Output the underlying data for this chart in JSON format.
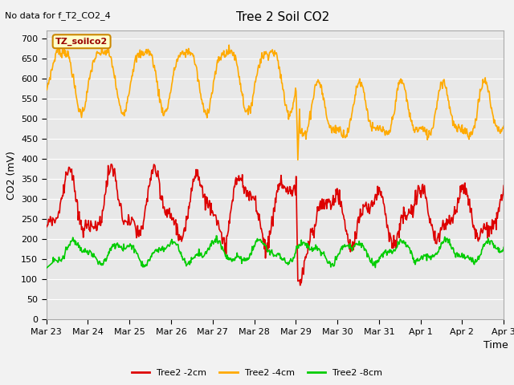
{
  "title": "Tree 2 Soil CO2",
  "subtitle": "No data for f_T2_CO2_4",
  "ylabel": "CO2 (mV)",
  "xlabel": "Time",
  "legend_label": "TZ_soilco2",
  "ylim": [
    0,
    720
  ],
  "yticks": [
    0,
    50,
    100,
    150,
    200,
    250,
    300,
    350,
    400,
    450,
    500,
    550,
    600,
    650,
    700
  ],
  "xtick_labels": [
    "Mar 23",
    "Mar 24",
    "Mar 25",
    "Mar 26",
    "Mar 27",
    "Mar 28",
    "Mar 29",
    "Mar 30",
    "Mar 31",
    "Apr 1",
    "Apr 2",
    "Apr 3"
  ],
  "color_2cm": "#dd0000",
  "color_4cm": "#ffaa00",
  "color_8cm": "#00cc00",
  "fig_bg": "#f2f2f2",
  "plot_bg": "#e8e8e8",
  "grid_color": "#ffffff",
  "line_width": 1.2
}
